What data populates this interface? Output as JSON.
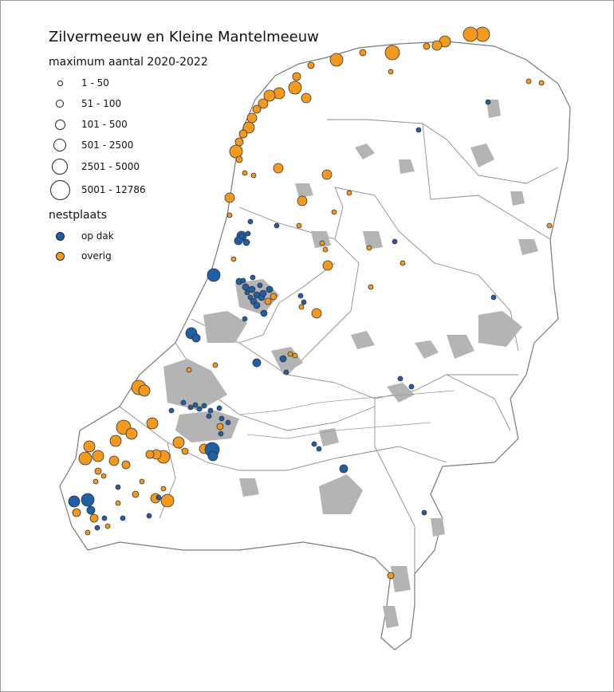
{
  "title": "Zilvermeeuw en Kleine Mantelmeeuw",
  "legend": {
    "size_title": "maximum aantal 2020-2022",
    "size_classes": [
      {
        "label": "1 - 50"
      },
      {
        "label": "51 - 100"
      },
      {
        "label": "101 - 500"
      },
      {
        "label": "501 - 2500"
      },
      {
        "label": "2501 - 5000"
      },
      {
        "label": "5001 - 12786"
      }
    ],
    "nest_title": "nestplaats",
    "nest_types": [
      {
        "label": "op dak",
        "color": "#1f5fa8"
      },
      {
        "label": "overig",
        "color": "#f39a1e"
      }
    ]
  },
  "colors": {
    "urban": "#b4b4b4",
    "borders": "#8c8c8c",
    "land": "#ffffff"
  }
}
